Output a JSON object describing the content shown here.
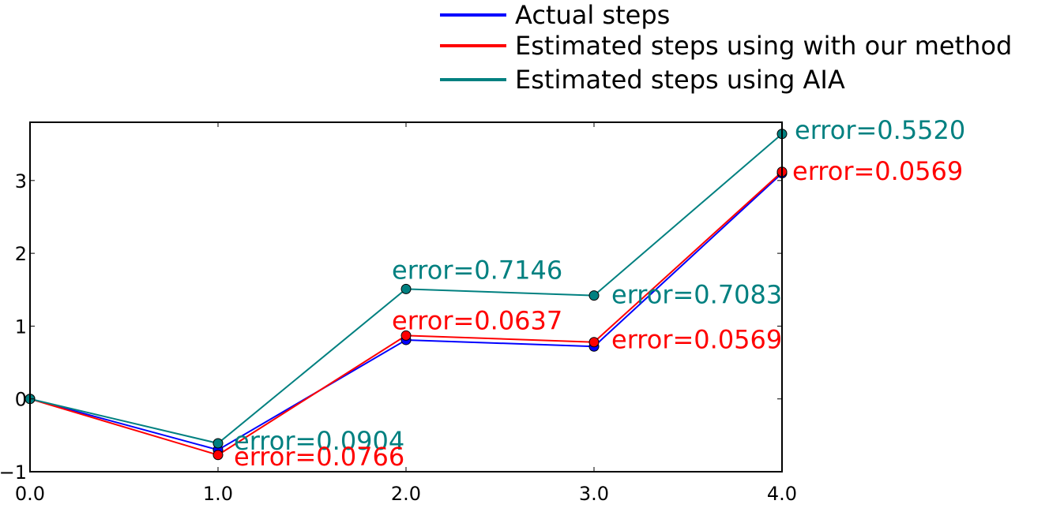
{
  "chart_data": {
    "type": "line",
    "title": "",
    "xlabel": "",
    "ylabel": "",
    "x": [
      0.0,
      1.0,
      2.0,
      3.0,
      4.0
    ],
    "xlim": [
      0.0,
      4.0
    ],
    "ylim": [
      -1.0,
      3.8
    ],
    "xticks": [
      0.0,
      1.0,
      2.0,
      3.0,
      4.0
    ],
    "xtick_labels": [
      "0.0",
      "1.0",
      "2.0",
      "3.0",
      "4.0"
    ],
    "yticks": [
      -1,
      0,
      1,
      2,
      3
    ],
    "ytick_labels": [
      "−1",
      "0",
      "1",
      "2",
      "3"
    ],
    "grid": false,
    "legend_position": "top-center",
    "series": [
      {
        "name": "Actual steps",
        "color": "#0000ff",
        "marker": "circle",
        "values": [
          0.0,
          -0.7,
          0.81,
          0.72,
          3.1
        ]
      },
      {
        "name": "Estimated steps using with our method",
        "color": "#ff0000",
        "marker": "circle",
        "values": [
          0.0,
          -0.77,
          0.87,
          0.78,
          3.12
        ]
      },
      {
        "name": "Estimated steps using AIA",
        "color": "#008080",
        "marker": "circle",
        "values": [
          0.0,
          -0.61,
          1.51,
          1.42,
          3.64
        ]
      }
    ],
    "annotations": [
      {
        "text": "error=0.0904",
        "color": "#008080",
        "x": 1.0,
        "y": -0.61
      },
      {
        "text": "error=0.0766",
        "color": "#ff0000",
        "x": 1.0,
        "y": -0.77
      },
      {
        "text": "error=0.7146",
        "color": "#008080",
        "x": 2.0,
        "y": 1.51
      },
      {
        "text": "error=0.0637",
        "color": "#ff0000",
        "x": 2.0,
        "y": 0.87
      },
      {
        "text": "error=0.7083",
        "color": "#008080",
        "x": 3.0,
        "y": 1.42
      },
      {
        "text": "error=0.0569",
        "color": "#ff0000",
        "x": 3.0,
        "y": 0.78
      },
      {
        "text": "error=0.5520",
        "color": "#008080",
        "x": 4.0,
        "y": 3.64
      },
      {
        "text": "error=0.0569",
        "color": "#ff0000",
        "x": 4.0,
        "y": 3.12
      }
    ]
  }
}
